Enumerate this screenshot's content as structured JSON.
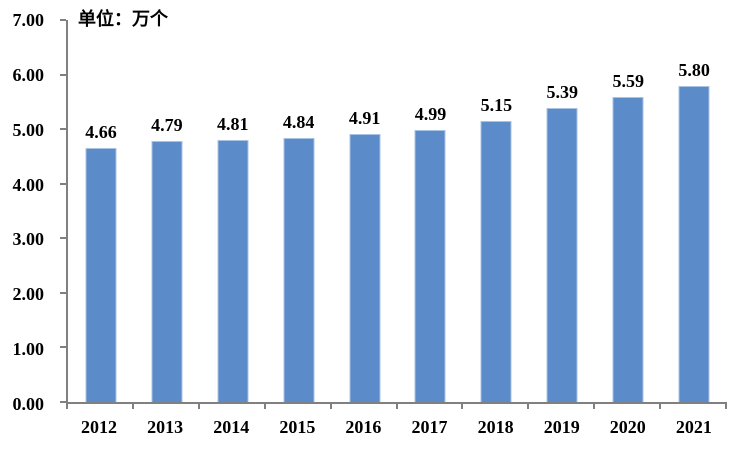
{
  "chart": {
    "unit_label": "单位：万个",
    "colors": {
      "bar_fill": "#5B8BC9",
      "bar_edge": "#A9C3E2",
      "axis": "#808080",
      "text": "#000000",
      "background": "#FFFFFF"
    }
  },
  "chart_data": {
    "type": "bar",
    "title": "",
    "unit": "单位：万个",
    "categories": [
      "2012",
      "2013",
      "2014",
      "2015",
      "2016",
      "2017",
      "2018",
      "2019",
      "2020",
      "2021"
    ],
    "values": [
      4.66,
      4.79,
      4.81,
      4.84,
      4.91,
      4.99,
      5.15,
      5.39,
      5.59,
      5.8
    ],
    "data_labels": [
      "4.66",
      "4.79",
      "4.81",
      "4.84",
      "4.91",
      "4.99",
      "5.15",
      "5.39",
      "5.59",
      "5.80"
    ],
    "xlabel": "",
    "ylabel": "",
    "ylim": [
      0,
      7
    ],
    "ytick_step": 1,
    "ytick_labels": [
      "0.00",
      "1.00",
      "2.00",
      "3.00",
      "4.00",
      "5.00",
      "6.00",
      "7.00"
    ],
    "grid": false,
    "legend": false
  }
}
